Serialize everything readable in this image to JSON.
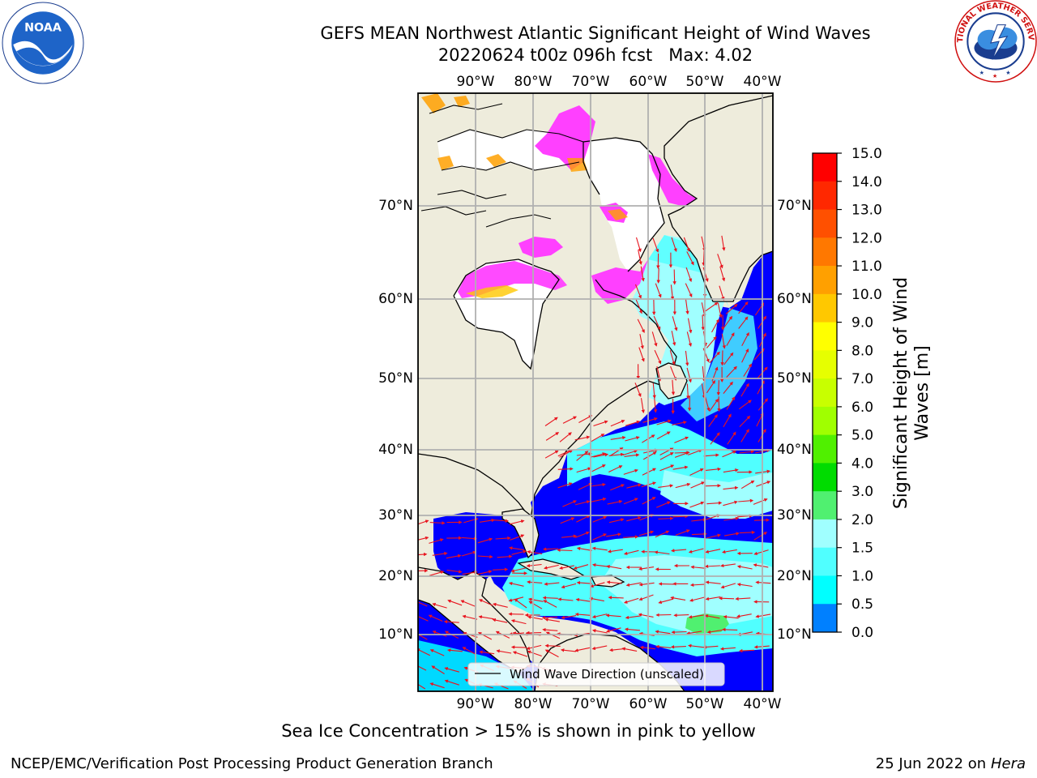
{
  "header": {
    "title_line1": "GEFS MEAN Northwest Atlantic Significant Height of Wind Waves",
    "title_line2": "20220624 t00z 096h fcst   Max: 4.02"
  },
  "logos": {
    "left": {
      "icon": "noaa-logo",
      "text": "NOAA"
    },
    "right": {
      "icon": "nws-logo",
      "text": "NATIONAL WEATHER SERVICE"
    }
  },
  "map": {
    "lon_labels": [
      "90°W",
      "80°W",
      "70°W",
      "60°W",
      "50°W",
      "40°W"
    ],
    "lat_labels": [
      "70°N",
      "60°N",
      "50°N",
      "40°N",
      "30°N",
      "20°N",
      "10°N"
    ],
    "legend_label": "Wind Wave Direction (unscaled)",
    "colors": {
      "land": "#eeecdc",
      "ocean_low": "#0000ff",
      "ocean_mid": "#00ffff",
      "ice": "#ff40ff",
      "arrow": "#e8141e",
      "grid": "#b0b0b0"
    }
  },
  "colorbar": {
    "title_line1": "Significant Height of Wind",
    "title_line2": "Waves [m]",
    "ticks": [
      "15.0",
      "14.0",
      "13.0",
      "12.0",
      "11.0",
      "10.0",
      "9.0",
      "8.0",
      "7.0",
      "6.0",
      "5.0",
      "4.0",
      "3.0",
      "2.0",
      "1.5",
      "1.0",
      "0.5",
      "0.0"
    ],
    "colors": [
      "#ff0000",
      "#ff2800",
      "#ff5000",
      "#ff7800",
      "#ffa000",
      "#ffc800",
      "#ffff00",
      "#e6ff00",
      "#c8ff00",
      "#a0ff00",
      "#50f000",
      "#00dc00",
      "#50f070",
      "#a0ffff",
      "#50ffff",
      "#00ffff",
      "#0080ff",
      "#0000ff"
    ]
  },
  "footer": {
    "note": "Sea Ice Concentration > 15% is shown in pink to yellow",
    "credit": "NCEP/EMC/Verification Post Processing Product Generation Branch",
    "date": "25 Jun 2022 on",
    "host": "Hera"
  }
}
